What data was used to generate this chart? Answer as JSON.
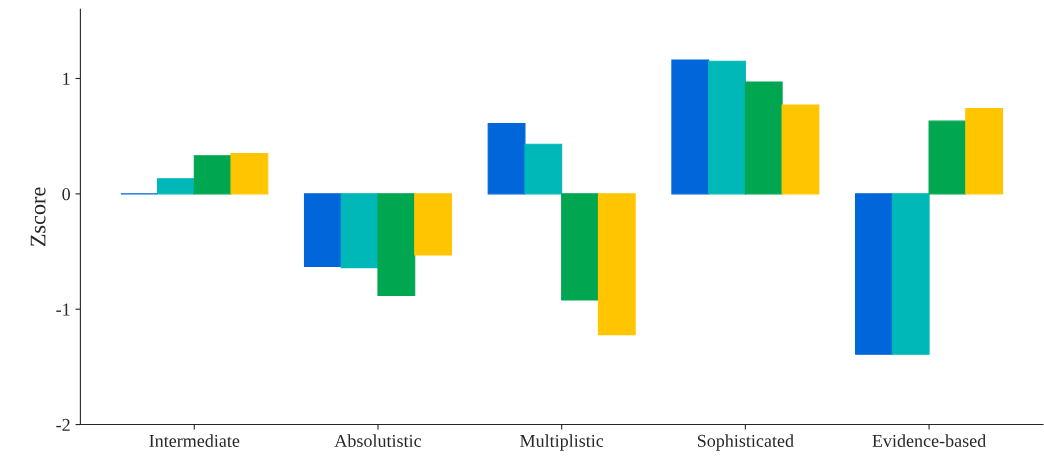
{
  "chart_data": {
    "type": "bar",
    "ylabel": "Zscore",
    "categories": [
      "Intermediate",
      "Absolutistic",
      "Multiplistic",
      "Sophisticated",
      "Evidence-based"
    ],
    "series": [
      {
        "color": "#0066d9",
        "values": [
          0.0,
          -0.63,
          0.61,
          1.16,
          -1.39
        ]
      },
      {
        "color": "#00b8b8",
        "values": [
          0.13,
          -0.64,
          0.43,
          1.15,
          -1.39
        ]
      },
      {
        "color": "#00a650",
        "values": [
          0.33,
          -0.88,
          -0.92,
          0.97,
          0.63
        ]
      },
      {
        "color": "#ffc600",
        "values": [
          0.35,
          -0.53,
          -1.22,
          0.77,
          0.74
        ]
      }
    ],
    "ylim": [
      -2,
      1.6
    ],
    "yticks": [
      -2,
      -1,
      0,
      1
    ],
    "grid": false,
    "legend": false
  }
}
